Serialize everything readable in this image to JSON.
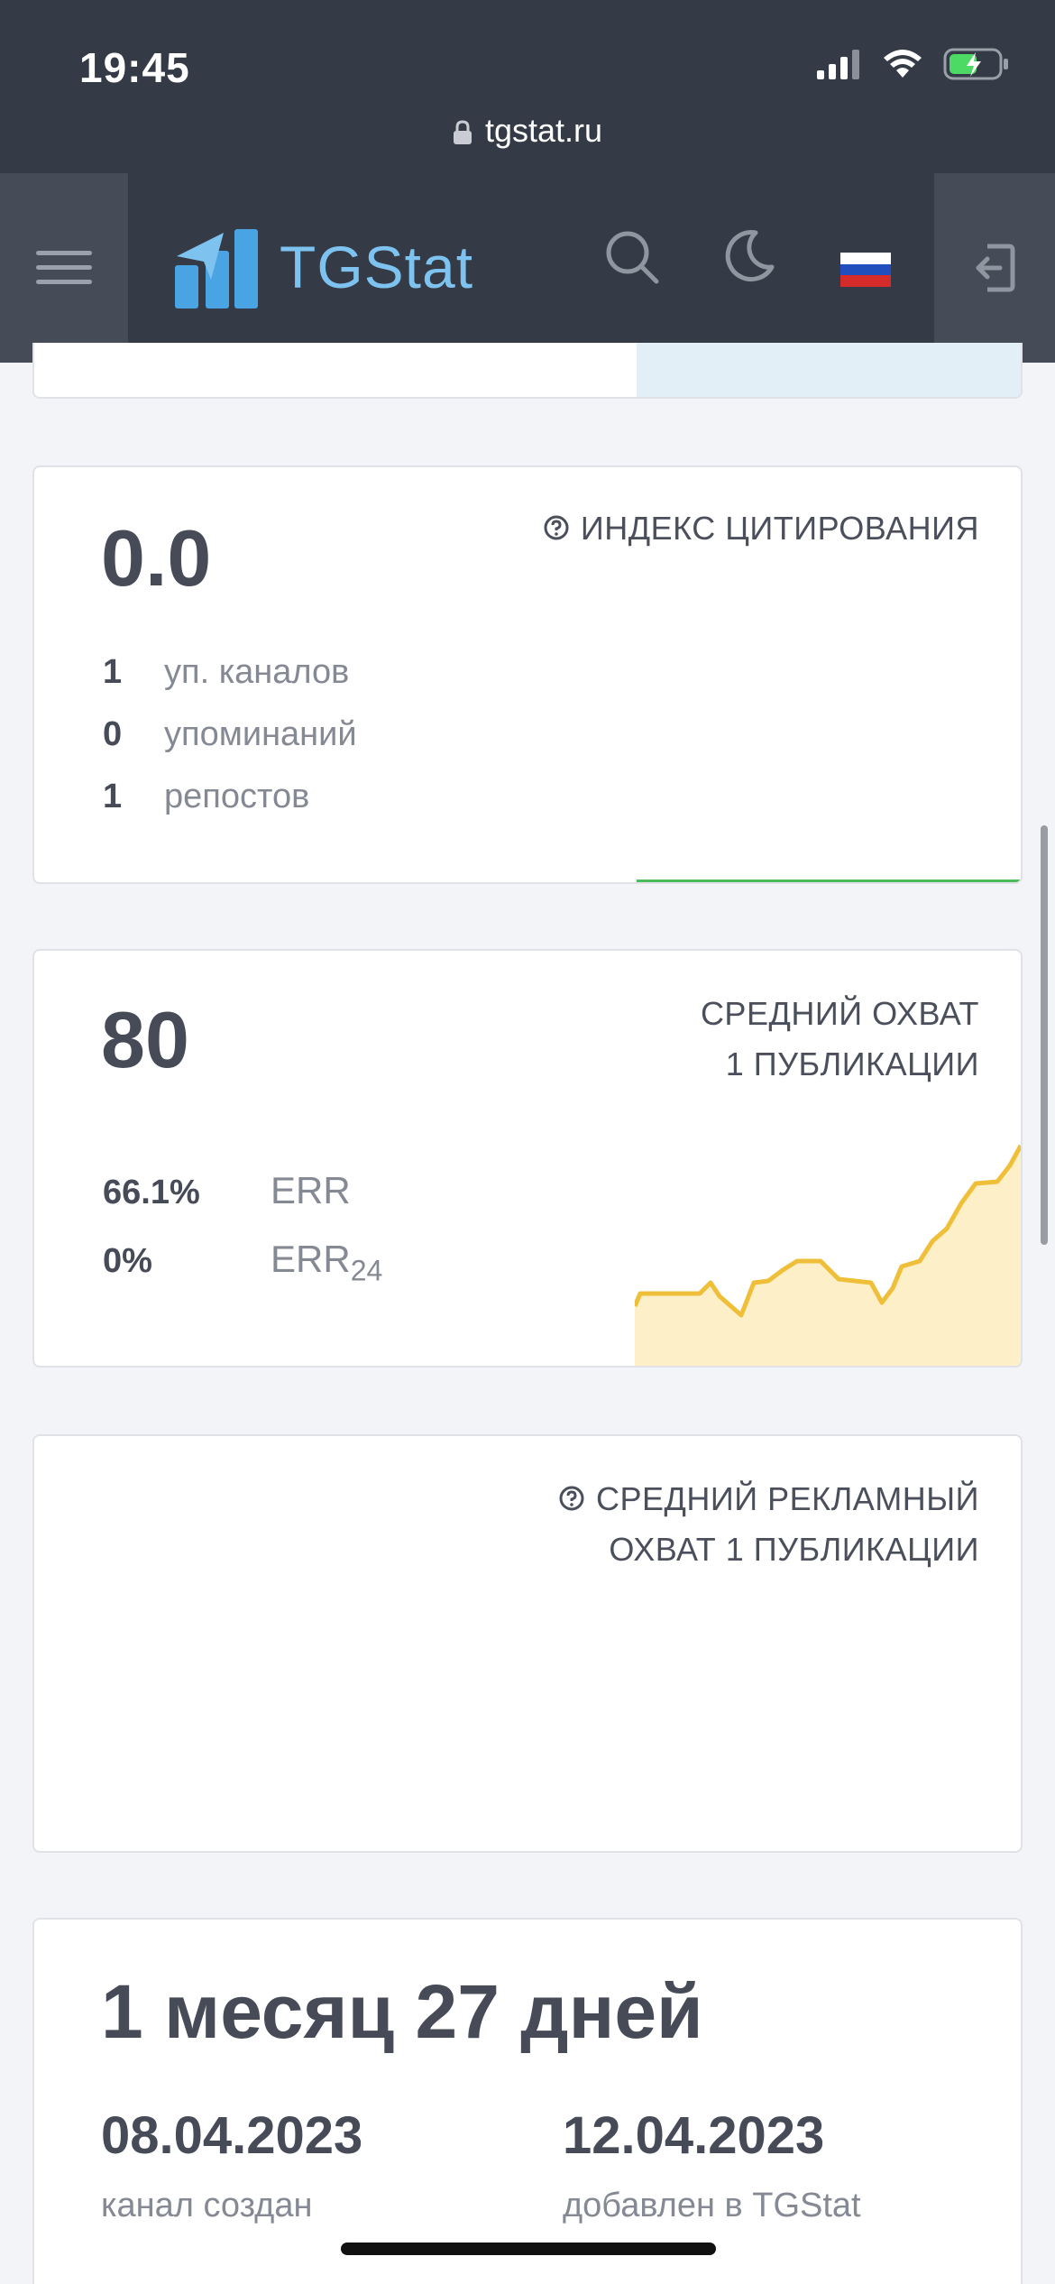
{
  "status": {
    "time": "19:45"
  },
  "browser": {
    "url": "tgstat.ru"
  },
  "header": {
    "brand": "TGStat"
  },
  "citation": {
    "value": "0.0",
    "title": "ИНДЕКС ЦИТИРОВАНИЯ",
    "rows": [
      {
        "num": "1",
        "label": "уп. каналов"
      },
      {
        "num": "0",
        "label": "упоминаний"
      },
      {
        "num": "1",
        "label": "репостов"
      }
    ]
  },
  "reach": {
    "value": "80",
    "title_line1": "СРЕДНИЙ ОХВАТ",
    "title_line2": "1 ПУБЛИКАЦИИ",
    "err": {
      "value": "66.1%",
      "label": "ERR"
    },
    "err24": {
      "value": "0%",
      "label": "ERR",
      "sub": "24"
    }
  },
  "ad_reach": {
    "title_line1": "СРЕДНИЙ РЕКЛАМНЫЙ",
    "title_line2": "ОХВАТ 1 ПУБЛИКАЦИИ"
  },
  "age": {
    "value": "1 месяц 27 дней",
    "created": {
      "date": "08.04.2023",
      "label": "канал создан"
    },
    "added": {
      "date": "12.04.2023",
      "label": "добавлен в TGStat"
    }
  },
  "colors": {
    "header_bg": "#343a46",
    "brand": "#7ec3ef",
    "reach_line": "#f0bf3a",
    "reach_fill": "#fdf0c8",
    "citation_line": "#4cbb5c"
  }
}
